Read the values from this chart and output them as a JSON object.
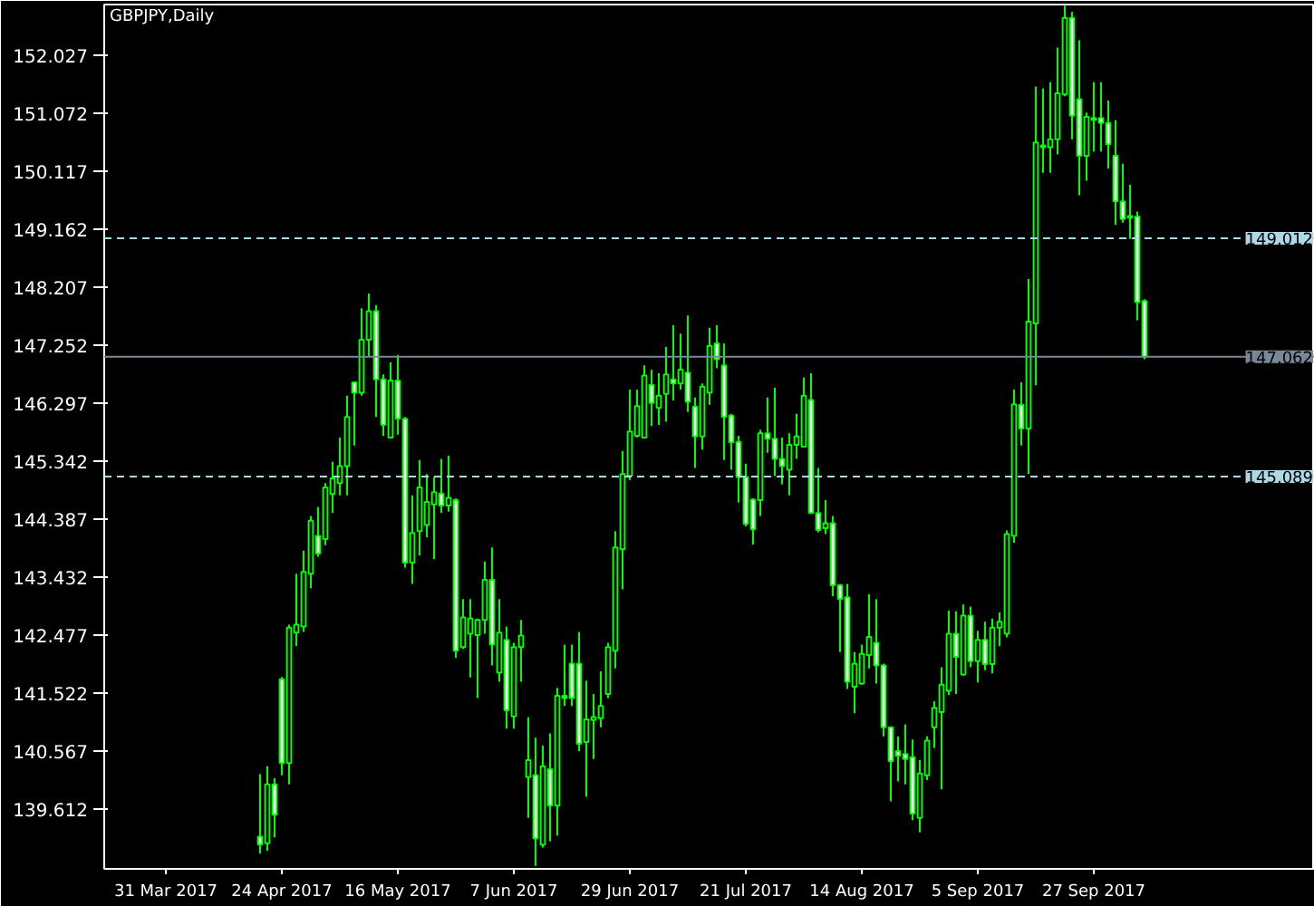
{
  "chart_data": {
    "type": "candlestick",
    "title": "GBPJPY,Daily",
    "categories": [
      "31 Mar 2017",
      null,
      null,
      null,
      null,
      null,
      null,
      null,
      null,
      null,
      null,
      null,
      null,
      null,
      null,
      null,
      "24 Apr 2017",
      null,
      null,
      null,
      null,
      null,
      null,
      null,
      null,
      null,
      null,
      null,
      null,
      null,
      null,
      null,
      "16 May 2017",
      null,
      null,
      null,
      null,
      null,
      null,
      null,
      null,
      null,
      null,
      null,
      null,
      null,
      null,
      null,
      "7 Jun 2017",
      null,
      null,
      null,
      null,
      null,
      null,
      null,
      null,
      null,
      null,
      null,
      null,
      null,
      null,
      null,
      "29 Jun 2017",
      null,
      null,
      null,
      null,
      null,
      null,
      null,
      null,
      null,
      null,
      null,
      null,
      null,
      null,
      null,
      "21 Jul 2017",
      null,
      null,
      null,
      null,
      null,
      null,
      null,
      null,
      null,
      null,
      null,
      null,
      null,
      null,
      null,
      "14 Aug 2017",
      null,
      null,
      null,
      null,
      null,
      null,
      null,
      null,
      null,
      null,
      null,
      null,
      null,
      null,
      null,
      "5 Sep 2017",
      null,
      null,
      null,
      null,
      null,
      null,
      null,
      null,
      null,
      null,
      null,
      null,
      null,
      null,
      null,
      "27 Sep 2017",
      null,
      null,
      null,
      null,
      null,
      null,
      null
    ],
    "color": "#00ff00",
    "ohlc": [
      null,
      null,
      null,
      null,
      null,
      null,
      null,
      null,
      null,
      null,
      null,
      null,
      null,
      [
        139.16,
        140.19,
        138.88,
        139.03
      ],
      [
        139.05,
        140.32,
        138.93,
        140.02
      ],
      [
        140.02,
        140.12,
        139.15,
        139.52
      ],
      [
        141.75,
        141.79,
        140.17,
        140.37
      ],
      [
        140.37,
        142.65,
        140.02,
        142.6
      ],
      [
        142.52,
        143.49,
        142.3,
        142.65
      ],
      [
        142.62,
        143.87,
        142.53,
        143.52
      ],
      [
        143.49,
        144.44,
        143.25,
        144.36
      ],
      [
        144.11,
        144.59,
        143.77,
        143.82
      ],
      [
        144.06,
        144.98,
        143.96,
        144.91
      ],
      [
        144.8,
        145.33,
        144.49,
        145.06
      ],
      [
        144.98,
        145.73,
        144.78,
        145.26
      ],
      [
        145.26,
        146.42,
        144.78,
        146.07
      ],
      [
        146.64,
        146.64,
        145.6,
        146.47
      ],
      [
        146.47,
        147.86,
        146.42,
        147.34
      ],
      [
        147.34,
        148.1,
        147.07,
        147.81
      ],
      [
        147.81,
        147.91,
        146.07,
        146.69
      ],
      [
        146.69,
        146.77,
        145.76,
        145.94
      ],
      [
        145.73,
        146.97,
        145.73,
        146.67
      ],
      [
        146.67,
        147.09,
        145.78,
        146.04
      ],
      [
        146.04,
        146.07,
        143.59,
        143.67
      ],
      [
        143.67,
        144.78,
        143.32,
        144.16
      ],
      [
        144.19,
        145.36,
        143.79,
        144.91
      ],
      [
        144.29,
        145.13,
        144.09,
        144.67
      ],
      [
        144.63,
        145.08,
        143.73,
        144.83
      ],
      [
        144.81,
        145.38,
        144.49,
        144.61
      ],
      [
        144.61,
        145.43,
        144.51,
        144.74
      ],
      [
        144.7,
        144.73,
        142.1,
        142.22
      ],
      [
        142.28,
        143.07,
        142.25,
        142.77
      ],
      [
        142.5,
        143.07,
        141.78,
        142.75
      ],
      [
        142.48,
        142.75,
        141.44,
        142.73
      ],
      [
        142.73,
        143.69,
        142.5,
        143.39
      ],
      [
        143.39,
        143.92,
        141.98,
        142.32
      ],
      [
        141.86,
        143.07,
        141.71,
        142.52
      ],
      [
        142.4,
        142.62,
        140.94,
        141.24
      ],
      [
        141.14,
        142.35,
        140.94,
        142.28
      ],
      [
        142.28,
        142.73,
        141.71,
        142.47
      ],
      [
        140.14,
        141.13,
        139.47,
        140.42
      ],
      [
        140.17,
        140.79,
        138.68,
        139.13
      ],
      [
        139.03,
        140.66,
        138.98,
        140.32
      ],
      [
        140.27,
        140.86,
        139.08,
        139.67
      ],
      [
        139.67,
        141.61,
        139.18,
        141.48
      ],
      [
        141.48,
        142.32,
        141.31,
        141.44
      ],
      [
        142.01,
        142.32,
        141.31,
        141.44
      ],
      [
        142.01,
        142.53,
        140.57,
        140.69
      ],
      [
        140.72,
        141.73,
        139.82,
        141.09
      ],
      [
        141.08,
        141.51,
        140.44,
        141.13
      ],
      [
        141.11,
        141.88,
        140.96,
        141.31
      ],
      [
        141.51,
        142.35,
        141.44,
        142.28
      ],
      [
        142.22,
        144.19,
        141.93,
        143.92
      ],
      [
        143.89,
        145.51,
        143.23,
        145.13
      ],
      [
        145.1,
        146.52,
        145.03,
        145.83
      ],
      [
        145.76,
        146.52,
        145.73,
        146.25
      ],
      [
        145.73,
        146.92,
        145.73,
        146.75
      ],
      [
        146.6,
        146.85,
        145.92,
        146.3
      ],
      [
        146.22,
        146.79,
        145.94,
        146.42
      ],
      [
        146.45,
        147.22,
        145.99,
        146.77
      ],
      [
        146.69,
        147.58,
        146.34,
        146.62
      ],
      [
        146.62,
        147.44,
        146.52,
        146.85
      ],
      [
        146.8,
        147.74,
        146.15,
        146.32
      ],
      [
        146.24,
        146.39,
        145.23,
        145.75
      ],
      [
        145.75,
        146.62,
        145.53,
        146.57
      ],
      [
        146.47,
        147.54,
        146.27,
        147.24
      ],
      [
        147.28,
        147.58,
        146.87,
        147.02
      ],
      [
        146.92,
        147.28,
        145.36,
        146.07
      ],
      [
        146.09,
        146.12,
        145.2,
        145.65
      ],
      [
        145.66,
        145.76,
        144.66,
        145.08
      ],
      [
        145.08,
        145.3,
        144.27,
        144.31
      ],
      [
        144.71,
        144.73,
        143.97,
        144.22
      ],
      [
        144.7,
        145.86,
        144.44,
        145.8
      ],
      [
        145.8,
        146.39,
        145.48,
        145.71
      ],
      [
        145.71,
        146.55,
        145.1,
        145.38
      ],
      [
        145.38,
        145.73,
        144.96,
        145.26
      ],
      [
        145.2,
        145.8,
        144.78,
        145.61
      ],
      [
        145.61,
        146.12,
        145.38,
        145.75
      ],
      [
        145.58,
        146.72,
        145.58,
        146.42
      ],
      [
        146.35,
        146.79,
        144.49,
        144.49
      ],
      [
        144.49,
        145.23,
        144.17,
        144.21
      ],
      [
        144.24,
        144.7,
        144.14,
        144.32
      ],
      [
        144.32,
        144.44,
        143.12,
        143.3
      ],
      [
        143.3,
        143.32,
        142.2,
        143.07
      ],
      [
        143.1,
        143.32,
        141.59,
        141.71
      ],
      [
        141.63,
        142.2,
        141.19,
        142.01
      ],
      [
        141.68,
        142.32,
        141.66,
        142.17
      ],
      [
        142.15,
        143.15,
        141.93,
        142.45
      ],
      [
        142.35,
        143.07,
        141.68,
        141.98
      ],
      [
        141.98,
        142.01,
        140.81,
        140.96
      ],
      [
        140.96,
        140.96,
        139.74,
        140.4
      ],
      [
        140.57,
        140.81,
        140.07,
        140.49
      ],
      [
        140.52,
        141.01,
        140.02,
        140.44
      ],
      [
        140.47,
        140.76,
        139.43,
        139.54
      ],
      [
        139.47,
        140.42,
        139.23,
        140.2
      ],
      [
        140.17,
        140.81,
        140.09,
        140.74
      ],
      [
        140.96,
        141.39,
        140.62,
        141.28
      ],
      [
        141.21,
        141.95,
        139.94,
        141.66
      ],
      [
        141.56,
        142.88,
        141.49,
        142.5
      ],
      [
        142.5,
        142.87,
        141.51,
        142.12
      ],
      [
        141.83,
        142.98,
        141.81,
        142.8
      ],
      [
        142.8,
        142.95,
        141.95,
        142.05
      ],
      [
        142.05,
        142.55,
        141.7,
        142.4
      ],
      [
        142.4,
        142.7,
        141.9,
        142.0
      ],
      [
        142.0,
        142.75,
        141.85,
        142.6
      ],
      [
        142.6,
        142.85,
        142.3,
        142.7
      ],
      [
        142.5,
        144.2,
        142.44,
        144.14
      ],
      [
        144.11,
        146.52,
        144.0,
        146.28
      ],
      [
        146.27,
        146.64,
        145.6,
        145.88
      ],
      [
        145.88,
        148.34,
        145.13,
        147.64
      ],
      [
        147.61,
        151.51,
        146.59,
        150.59
      ],
      [
        150.51,
        151.48,
        150.09,
        150.54
      ],
      [
        150.51,
        151.58,
        150.09,
        150.64
      ],
      [
        150.64,
        152.15,
        150.39,
        151.4
      ],
      [
        151.38,
        152.84,
        151.35,
        152.64
      ],
      [
        152.64,
        152.74,
        150.64,
        151.03
      ],
      [
        151.3,
        152.27,
        149.72,
        150.37
      ],
      [
        150.37,
        151.08,
        149.96,
        151.01
      ],
      [
        150.99,
        151.58,
        150.44,
        150.96
      ],
      [
        150.99,
        151.58,
        150.44,
        150.91
      ],
      [
        150.91,
        151.28,
        150.16,
        150.56
      ],
      [
        150.37,
        150.96,
        149.23,
        149.62
      ],
      [
        149.62,
        150.24,
        149.27,
        149.33
      ],
      [
        149.38,
        149.89,
        149.0,
        149.35
      ],
      [
        149.37,
        149.45,
        147.66,
        147.96
      ],
      [
        147.98,
        148.01,
        147.02,
        147.06
      ]
    ],
    "ylim": [
      138.63,
      152.86
    ],
    "yticks": [
      152.027,
      151.072,
      150.117,
      149.162,
      148.207,
      147.252,
      146.297,
      145.342,
      144.387,
      143.432,
      142.477,
      141.522,
      140.567,
      139.612
    ],
    "ref_lines": [
      {
        "axis": "y",
        "value": 149.012,
        "label": "149.012",
        "color": "#add8e6",
        "line_style": "dashed"
      },
      {
        "axis": "y",
        "value": 147.062,
        "label": "147.062",
        "color": "#778899",
        "line_style": "solid"
      },
      {
        "axis": "y",
        "value": 145.089,
        "label": "145.089",
        "color": "#add8e6",
        "line_style": "dashed"
      }
    ],
    "grid": false
  }
}
